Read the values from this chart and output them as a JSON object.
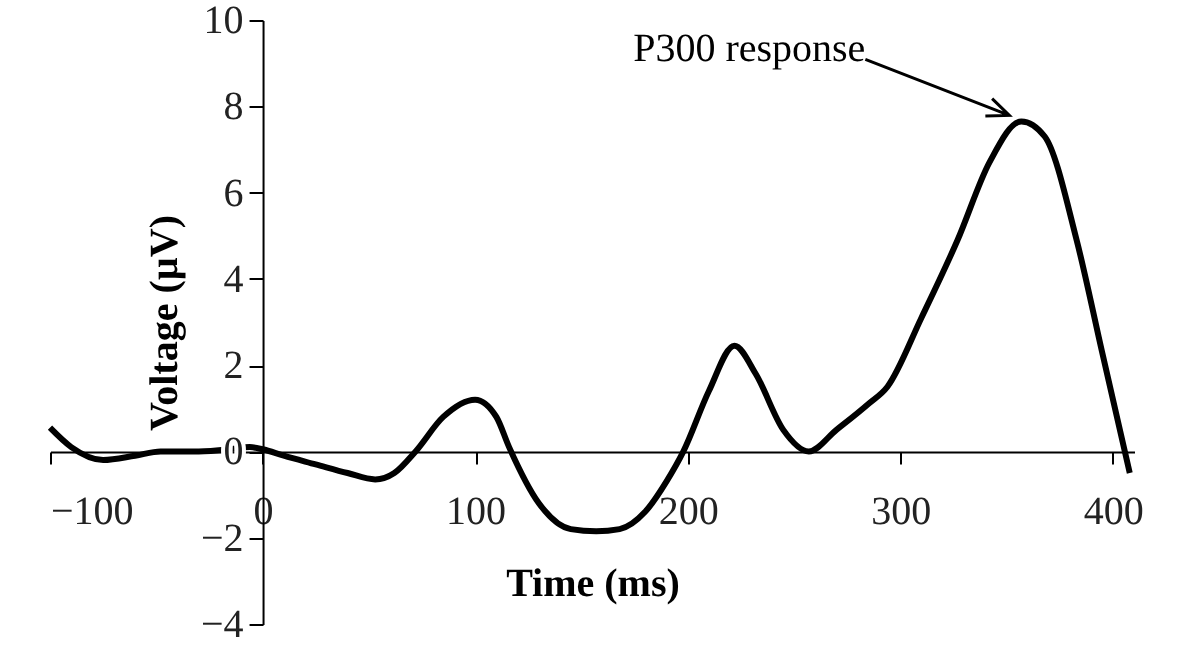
{
  "chart_data": {
    "type": "line",
    "xlabel": "Time (ms)",
    "ylabel": "Voltage (µV)",
    "x": [
      -100,
      -90,
      -75,
      -60,
      -48,
      -30,
      -15,
      -6,
      0,
      10,
      25,
      40,
      53,
      62,
      72,
      85,
      100,
      110,
      116,
      130,
      145,
      157,
      168,
      180,
      190,
      198,
      210,
      222,
      232,
      245,
      257,
      270,
      285,
      294,
      310,
      327,
      342,
      357,
      368,
      383,
      395,
      408
    ],
    "series": [
      {
        "color": "#000000",
        "values": [
          0.55,
          0.1,
          -0.2,
          -0.1,
          0.0,
          0.0,
          0.05,
          0.1,
          0.05,
          -0.1,
          -0.3,
          -0.5,
          -0.65,
          -0.5,
          0.0,
          0.8,
          1.2,
          0.8,
          0.1,
          -1.2,
          -1.8,
          -1.85,
          -1.8,
          -1.4,
          -0.7,
          0.0,
          1.4,
          2.45,
          1.8,
          0.5,
          0.0,
          0.5,
          1.1,
          1.5,
          3.1,
          4.9,
          6.7,
          7.65,
          7.3,
          4.9,
          2.3,
          -0.5
        ]
      }
    ],
    "xlim": [
      -100,
      410
    ],
    "ylim": [
      -4,
      10
    ],
    "xticks": [
      -100,
      0,
      100,
      200,
      300,
      400
    ],
    "yticks": [
      -4,
      -2,
      0,
      2,
      4,
      6,
      8,
      10
    ],
    "annotations": [
      {
        "text": "P300 response",
        "x": 357,
        "y": 7.65
      }
    ]
  }
}
